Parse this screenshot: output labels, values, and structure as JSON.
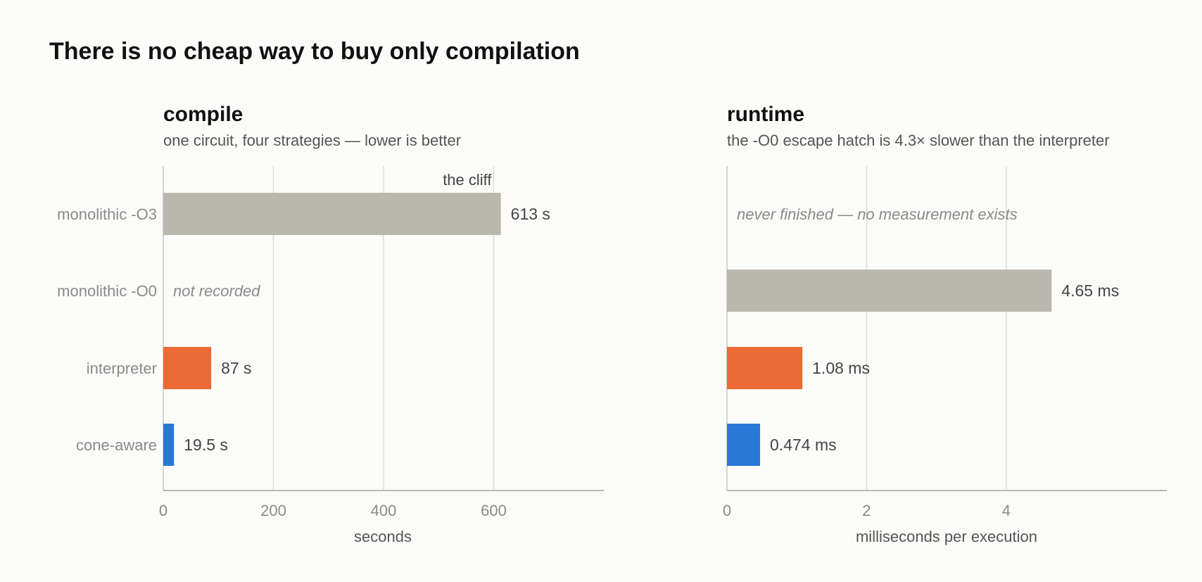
{
  "title": "There is no cheap way to buy only compilation",
  "chart_data": [
    {
      "type": "bar",
      "orientation": "horizontal",
      "title": "compile",
      "subtitle": "one circuit, four strategies — lower is better",
      "xlabel": "seconds",
      "ylabel": "",
      "xlim": [
        0,
        800
      ],
      "xticks": [
        0,
        200,
        400,
        600
      ],
      "grid": true,
      "categories": [
        "monolithic  -O3",
        "monolithic  -O0",
        "interpreter",
        "cone-aware"
      ],
      "values": [
        613,
        null,
        87,
        19.5
      ],
      "value_labels": [
        "613 s",
        "",
        "87 s",
        "19.5 s"
      ],
      "missing_notes": [
        "",
        "not recorded",
        "",
        ""
      ],
      "colors": [
        "#bab7af",
        "#bab7af",
        "#eb6935",
        "#2a78d6"
      ],
      "annotations": [
        {
          "text": "the cliff",
          "x": 600,
          "category": "monolithic  -O3"
        }
      ]
    },
    {
      "type": "bar",
      "orientation": "horizontal",
      "title": "runtime",
      "subtitle": "the -O0 escape hatch is 4.3× slower than the interpreter",
      "xlabel": "milliseconds per execution",
      "ylabel": "",
      "xlim": [
        0,
        6.3
      ],
      "xticks": [
        0,
        2,
        4
      ],
      "grid": true,
      "categories": [
        "monolithic  -O3",
        "monolithic  -O0",
        "interpreter",
        "cone-aware"
      ],
      "values": [
        null,
        4.65,
        1.08,
        0.474
      ],
      "value_labels": [
        "",
        "4.65 ms",
        "1.08 ms",
        "0.474 ms"
      ],
      "missing_notes": [
        "never finished — no measurement exists",
        "",
        "",
        ""
      ],
      "colors": [
        "#bab7af",
        "#bab7af",
        "#eb6935",
        "#2a78d6"
      ],
      "annotations": []
    }
  ]
}
